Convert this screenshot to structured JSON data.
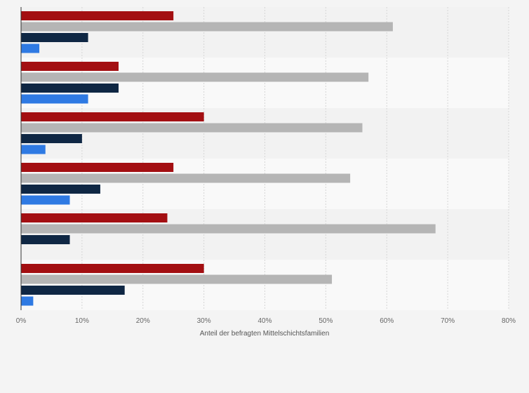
{
  "chart_data": {
    "type": "bar",
    "orientation": "horizontal",
    "title": "",
    "xlabel": "Anteil der befragten Mittelschichtsfamilien",
    "ylabel": "",
    "xlim": [
      0,
      80
    ],
    "x_ticks": [
      "0%",
      "10%",
      "20%",
      "30%",
      "40%",
      "50%",
      "60%",
      "70%",
      "80%"
    ],
    "grid": true,
    "legend": "none",
    "groups": 6,
    "series": [
      {
        "color": "#a30f12",
        "values": [
          25,
          16,
          30,
          25,
          24,
          30
        ]
      },
      {
        "color": "#b5b5b5",
        "values": [
          61,
          57,
          56,
          54,
          68,
          51
        ]
      },
      {
        "color": "#0f2744",
        "values": [
          11,
          16,
          10,
          13,
          8,
          17
        ]
      },
      {
        "color": "#2f7ae3",
        "values": [
          3,
          11,
          4,
          8,
          0,
          2
        ]
      }
    ]
  }
}
